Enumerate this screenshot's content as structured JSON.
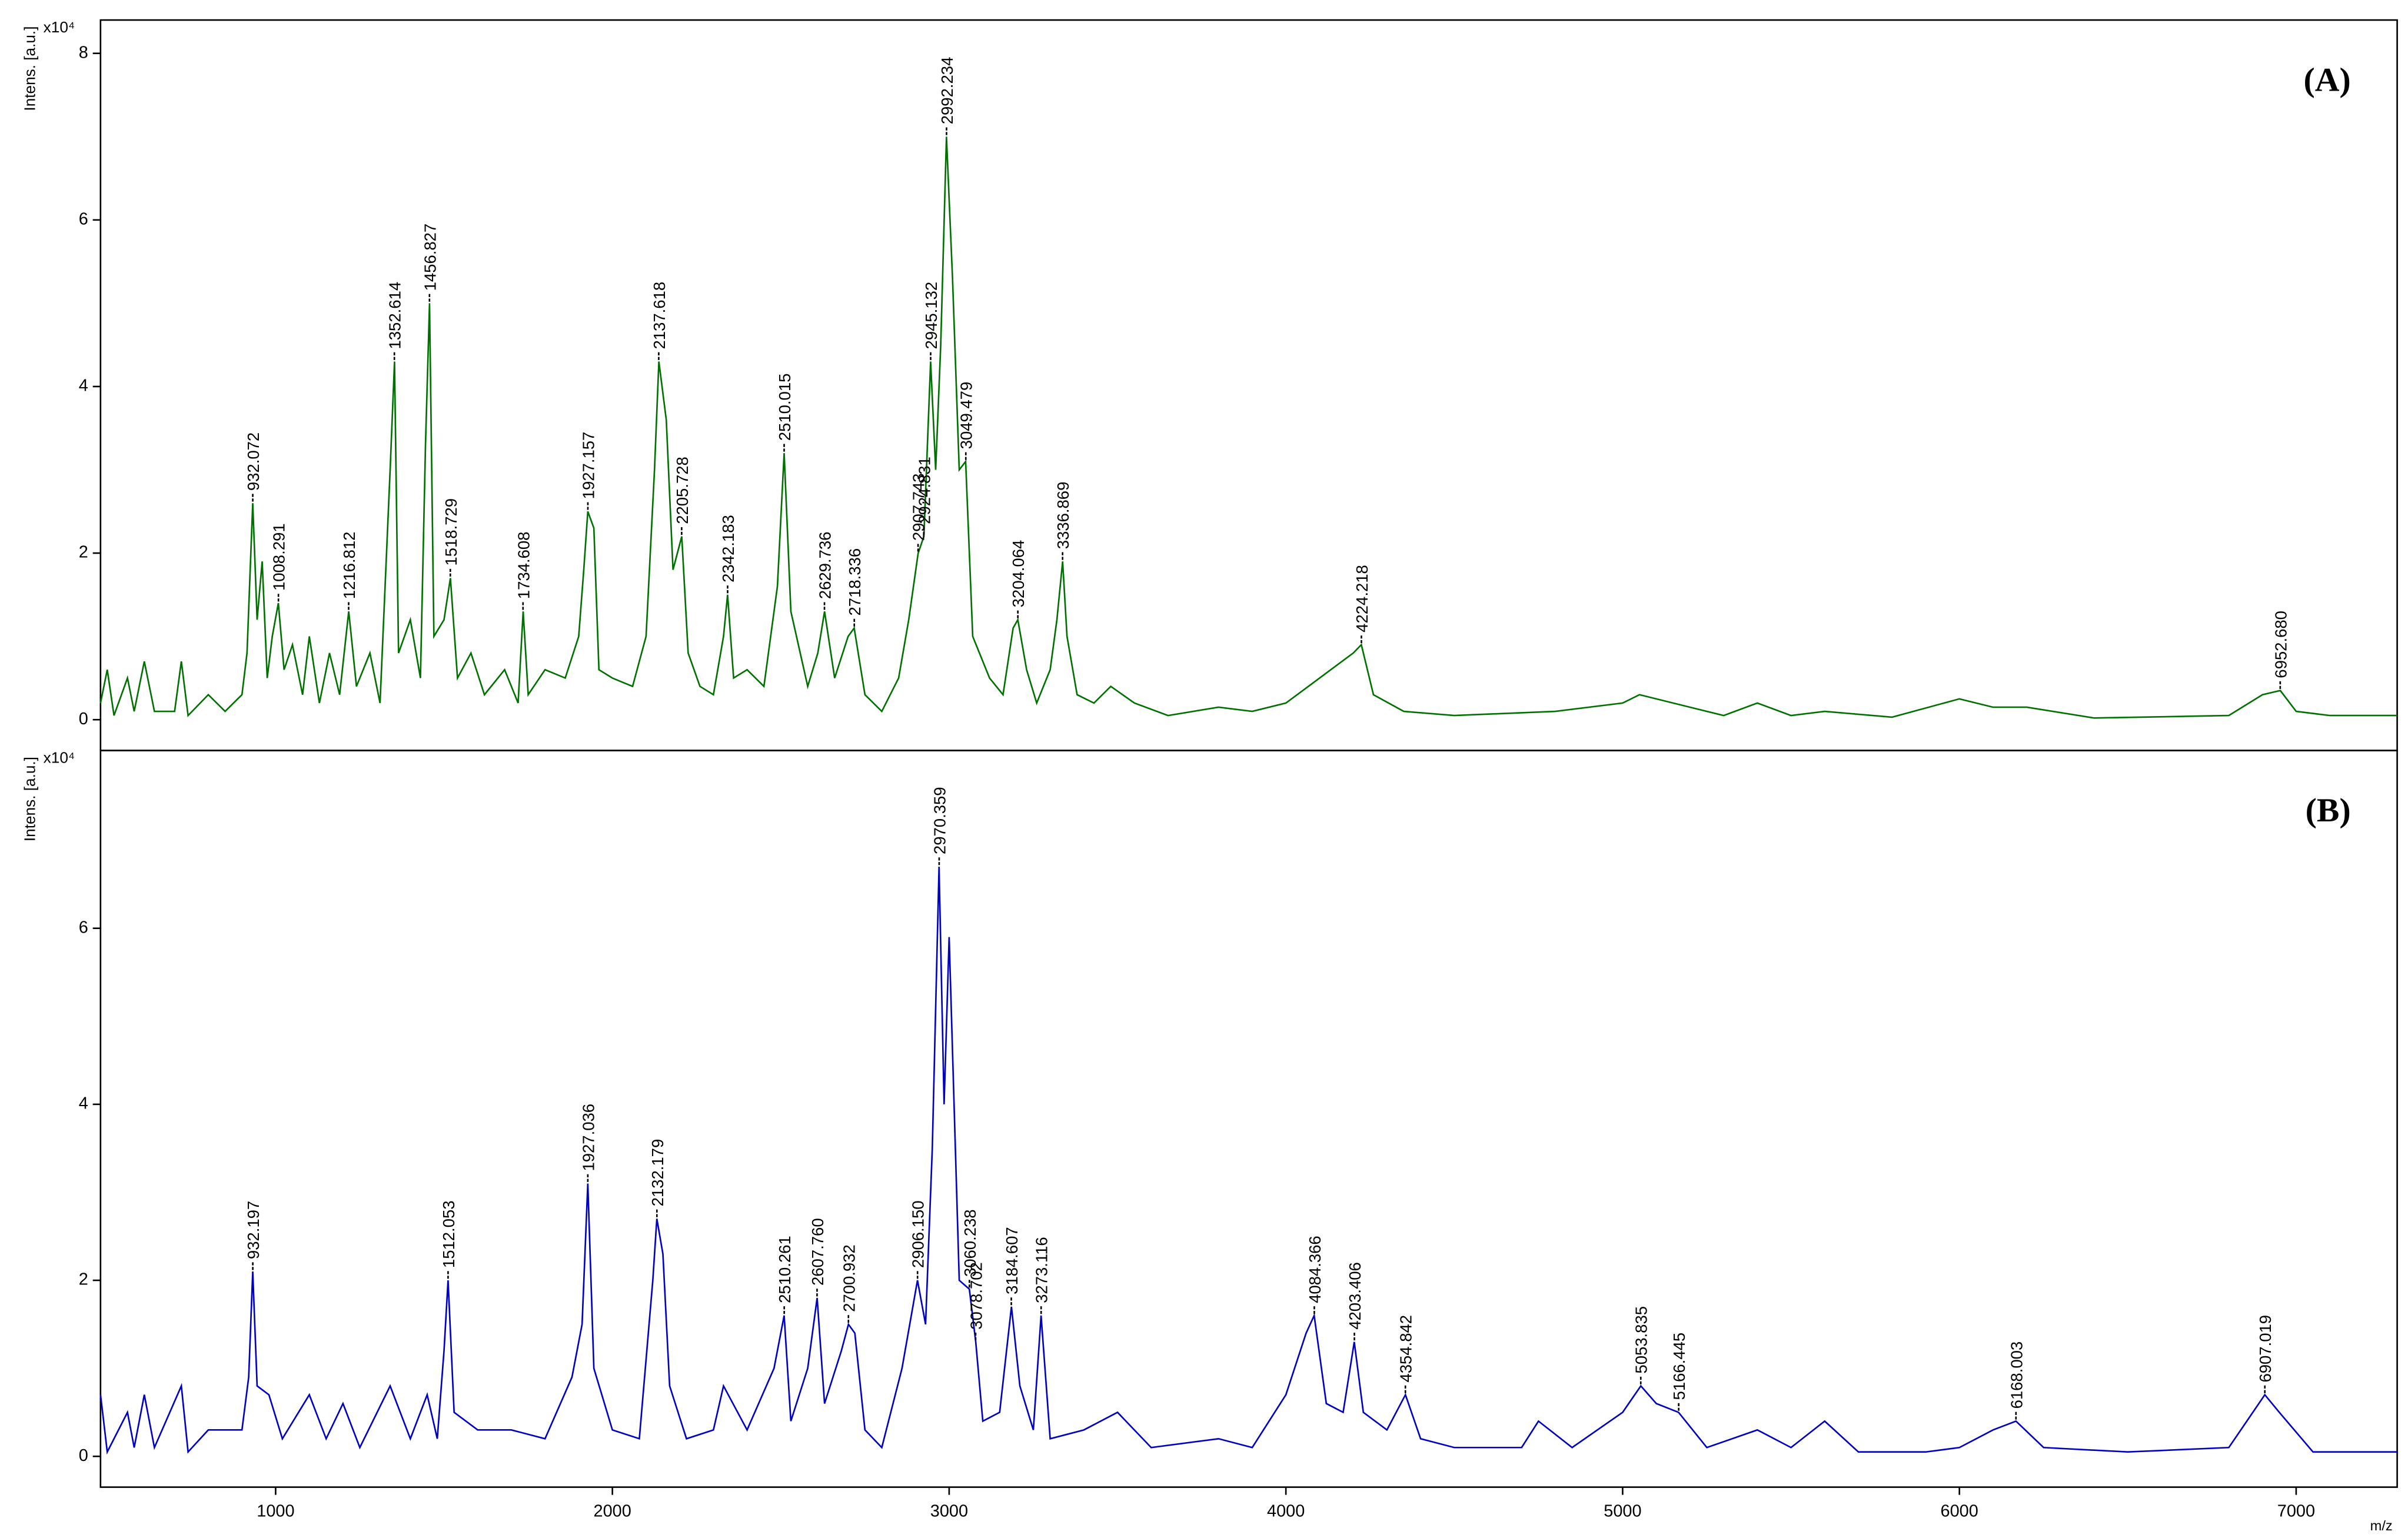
{
  "chart_data": [
    {
      "type": "line",
      "panel_label": "(A)",
      "y_label": "Intens. [a.u.]",
      "y_unit": "x10⁴",
      "xlim": [
        480,
        7300
      ],
      "ylim": [
        -0.37,
        8.4
      ],
      "yticks": [
        0,
        2,
        4,
        6,
        8
      ],
      "x": [
        480,
        500,
        520,
        560,
        580,
        610,
        640,
        700,
        720,
        740,
        800,
        850,
        900,
        915,
        932,
        945,
        960,
        975,
        990,
        1008,
        1025,
        1050,
        1080,
        1100,
        1130,
        1160,
        1190,
        1217,
        1240,
        1280,
        1310,
        1340,
        1353,
        1365,
        1400,
        1430,
        1445,
        1457,
        1470,
        1500,
        1519,
        1540,
        1580,
        1620,
        1680,
        1720,
        1735,
        1750,
        1800,
        1860,
        1900,
        1915,
        1927,
        1945,
        1960,
        2000,
        2060,
        2100,
        2125,
        2138,
        2160,
        2180,
        2206,
        2225,
        2260,
        2300,
        2330,
        2342,
        2360,
        2400,
        2450,
        2490,
        2510,
        2530,
        2580,
        2610,
        2630,
        2660,
        2700,
        2718,
        2750,
        2800,
        2850,
        2880,
        2908,
        2925,
        2945,
        2960,
        2975,
        2992,
        3010,
        3030,
        3049,
        3070,
        3120,
        3160,
        3190,
        3204,
        3230,
        3260,
        3300,
        3320,
        3337,
        3350,
        3380,
        3430,
        3480,
        3550,
        3650,
        3800,
        3900,
        4000,
        4100,
        4200,
        4224,
        4260,
        4350,
        4500,
        4800,
        5000,
        5050,
        5200,
        5300,
        5400,
        5500,
        5600,
        5800,
        6000,
        6100,
        6200,
        6400,
        6800,
        6900,
        6953,
        7000,
        7100,
        7300
      ],
      "series": [
        {
          "color": "#007000",
          "values": [
            0.2,
            0.6,
            0.05,
            0.5,
            0.1,
            0.7,
            0.1,
            0.1,
            0.7,
            0.05,
            0.3,
            0.1,
            0.3,
            0.8,
            2.6,
            1.2,
            1.9,
            0.5,
            1.0,
            1.4,
            0.6,
            0.9,
            0.3,
            1.0,
            0.2,
            0.8,
            0.3,
            1.3,
            0.4,
            0.8,
            0.2,
            3.0,
            4.3,
            0.8,
            1.2,
            0.5,
            3.3,
            5.0,
            1.0,
            1.2,
            1.7,
            0.5,
            0.8,
            0.3,
            0.6,
            0.2,
            1.3,
            0.3,
            0.6,
            0.5,
            1.0,
            1.8,
            2.5,
            2.3,
            0.6,
            0.5,
            0.4,
            1.0,
            3.0,
            4.3,
            3.6,
            1.8,
            2.2,
            0.8,
            0.4,
            0.3,
            1.0,
            1.5,
            0.5,
            0.6,
            0.4,
            1.6,
            3.2,
            1.3,
            0.4,
            0.8,
            1.3,
            0.5,
            1.0,
            1.1,
            0.3,
            0.1,
            0.5,
            1.2,
            2.0,
            2.2,
            4.3,
            3.0,
            4.5,
            7.0,
            5.3,
            3.0,
            3.1,
            1.0,
            0.5,
            0.3,
            1.1,
            1.2,
            0.6,
            0.2,
            0.6,
            1.2,
            1.9,
            1.0,
            0.3,
            0.2,
            0.4,
            0.2,
            0.05,
            0.15,
            0.1,
            0.2,
            0.5,
            0.8,
            0.9,
            0.3,
            0.1,
            0.05,
            0.1,
            0.2,
            0.3,
            0.15,
            0.05,
            0.2,
            0.05,
            0.1,
            0.03,
            0.25,
            0.15,
            0.15,
            0.02,
            0.05,
            0.3,
            0.35,
            0.1,
            0.05,
            0.05
          ]
        }
      ],
      "peaks": {
        "x": [
          932.072,
          1008.291,
          1216.812,
          1352.614,
          1456.827,
          1518.729,
          1734.608,
          1927.157,
          2137.618,
          2205.728,
          2342.183,
          2510.015,
          2629.736,
          2718.336,
          2907.743,
          2924.831,
          2945.132,
          2992.234,
          3049.479,
          3204.064,
          3336.869,
          4224.218,
          6952.68
        ],
        "values": [
          2.6,
          1.4,
          1.3,
          4.3,
          5.0,
          1.7,
          1.3,
          2.5,
          4.3,
          2.2,
          1.5,
          3.2,
          1.3,
          1.1,
          2.0,
          2.2,
          4.3,
          7.0,
          3.1,
          1.2,
          1.9,
          0.9,
          0.35
        ],
        "x_labels": [
          "932.072",
          "1008.291",
          "1216.812",
          "1352.614",
          "1456.827",
          "1518.729",
          "1734.608",
          "1927.157",
          "2137.618",
          "2205.728",
          "2342.183",
          "2510.015",
          "2629.736",
          "2718.336",
          "2907.743",
          "2924.831",
          "2945.132",
          "2992.234",
          "3049.479",
          "3204.064",
          "3336.869",
          "4224.218",
          "6952.680"
        ]
      }
    },
    {
      "type": "line",
      "panel_label": "(B)",
      "y_label": "Intens. [a.u.]",
      "y_unit": "x10⁴",
      "x_label": "m/z",
      "xlim": [
        480,
        7300
      ],
      "ylim": [
        -0.35,
        8.02
      ],
      "yticks": [
        0,
        2,
        4,
        6
      ],
      "xticks": [
        1000,
        2000,
        3000,
        4000,
        5000,
        6000,
        7000
      ],
      "x": [
        480,
        500,
        560,
        580,
        610,
        640,
        720,
        740,
        800,
        900,
        920,
        932,
        945,
        980,
        1020,
        1100,
        1150,
        1200,
        1250,
        1340,
        1400,
        1450,
        1480,
        1500,
        1512,
        1530,
        1600,
        1700,
        1800,
        1880,
        1910,
        1927,
        1945,
        2000,
        2080,
        2120,
        2132,
        2150,
        2170,
        2220,
        2300,
        2330,
        2400,
        2480,
        2510,
        2530,
        2580,
        2608,
        2630,
        2680,
        2701,
        2720,
        2750,
        2800,
        2860,
        2906,
        2930,
        2950,
        2970,
        2985,
        3000,
        3030,
        3060,
        3079,
        3100,
        3150,
        3185,
        3210,
        3250,
        3273,
        3300,
        3400,
        3500,
        3600,
        3800,
        3900,
        4000,
        4060,
        4084,
        4120,
        4170,
        4203,
        4230,
        4300,
        4355,
        4400,
        4500,
        4700,
        4750,
        4850,
        5000,
        5054,
        5100,
        5166,
        5250,
        5400,
        5500,
        5600,
        5700,
        5900,
        6000,
        6100,
        6168,
        6250,
        6500,
        6800,
        6907,
        6950,
        7050,
        7300
      ],
      "series": [
        {
          "color": "#0000c0",
          "values": [
            0.7,
            0.05,
            0.5,
            0.1,
            0.7,
            0.1,
            0.8,
            0.05,
            0.3,
            0.3,
            0.9,
            2.1,
            0.8,
            0.7,
            0.2,
            0.7,
            0.2,
            0.6,
            0.1,
            0.8,
            0.2,
            0.7,
            0.2,
            1.2,
            2.0,
            0.5,
            0.3,
            0.3,
            0.2,
            0.9,
            1.5,
            3.1,
            1.0,
            0.3,
            0.2,
            2.0,
            2.7,
            2.3,
            0.8,
            0.2,
            0.3,
            0.8,
            0.3,
            1.0,
            1.6,
            0.4,
            1.0,
            1.8,
            0.6,
            1.2,
            1.5,
            1.4,
            0.3,
            0.1,
            1.0,
            2.0,
            1.5,
            3.5,
            6.7,
            4.0,
            5.9,
            2.0,
            1.9,
            1.3,
            0.4,
            0.5,
            1.7,
            0.8,
            0.3,
            1.6,
            0.2,
            0.3,
            0.5,
            0.1,
            0.2,
            0.1,
            0.7,
            1.4,
            1.6,
            0.6,
            0.5,
            1.3,
            0.5,
            0.3,
            0.7,
            0.2,
            0.1,
            0.1,
            0.4,
            0.1,
            0.5,
            0.8,
            0.6,
            0.5,
            0.1,
            0.3,
            0.1,
            0.4,
            0.05,
            0.05,
            0.1,
            0.3,
            0.4,
            0.1,
            0.05,
            0.1,
            0.7,
            0.5,
            0.05,
            0.05
          ]
        }
      ],
      "peaks": {
        "x": [
          932.197,
          1512.053,
          1927.036,
          2132.179,
          2510.261,
          2607.76,
          2700.932,
          2906.15,
          2970.359,
          3060.238,
          3078.702,
          3184.607,
          3273.116,
          4084.366,
          4203.406,
          4354.842,
          5053.835,
          5166.445,
          6168.003,
          6907.019
        ],
        "values": [
          2.1,
          2.0,
          3.1,
          2.7,
          1.6,
          1.8,
          1.5,
          2.0,
          6.7,
          1.9,
          1.3,
          1.7,
          1.6,
          1.6,
          1.3,
          0.7,
          0.8,
          0.5,
          0.4,
          0.7
        ],
        "x_labels": [
          "932.197",
          "1512.053",
          "1927.036",
          "2132.179",
          "2510.261",
          "2607.760",
          "2700.932",
          "2906.150",
          "2970.359",
          "3060.238",
          "3078.702",
          "3184.607",
          "3273.116",
          "4084.366",
          "4203.406",
          "4354.842",
          "5053.835",
          "5166.445",
          "6168.003",
          "6907.019"
        ]
      }
    }
  ]
}
